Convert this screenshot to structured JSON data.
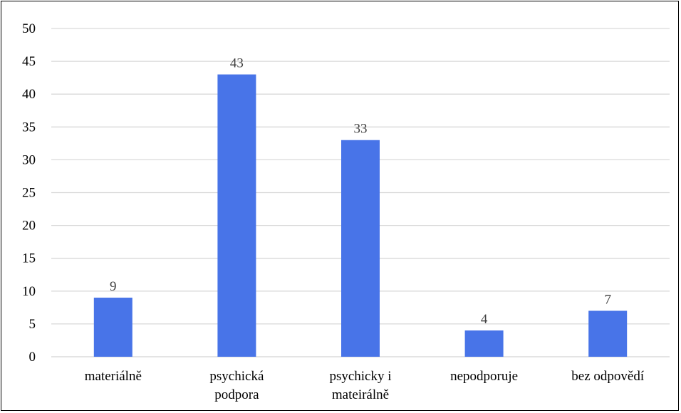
{
  "chart_data": {
    "type": "bar",
    "categories": [
      [
        "materiálně"
      ],
      [
        "psychická",
        "podpora"
      ],
      [
        "psychicky i",
        "mateirálně"
      ],
      [
        "nepodporuje"
      ],
      [
        "bez odpovědí"
      ]
    ],
    "values": [
      9,
      43,
      33,
      4,
      7
    ],
    "data_labels": [
      "9",
      "43",
      "33",
      "4",
      "7"
    ],
    "yticks": [
      "0",
      "5",
      "10",
      "15",
      "20",
      "25",
      "30",
      "35",
      "40",
      "45",
      "50"
    ],
    "ylim": [
      0,
      50
    ],
    "title": "",
    "xlabel": "",
    "ylabel": "",
    "grid": true,
    "legend": "none",
    "colors": {
      "bar": "#4874E8",
      "grid": "#D9D9D9",
      "data_label": "#404040",
      "border": "#000000"
    }
  }
}
